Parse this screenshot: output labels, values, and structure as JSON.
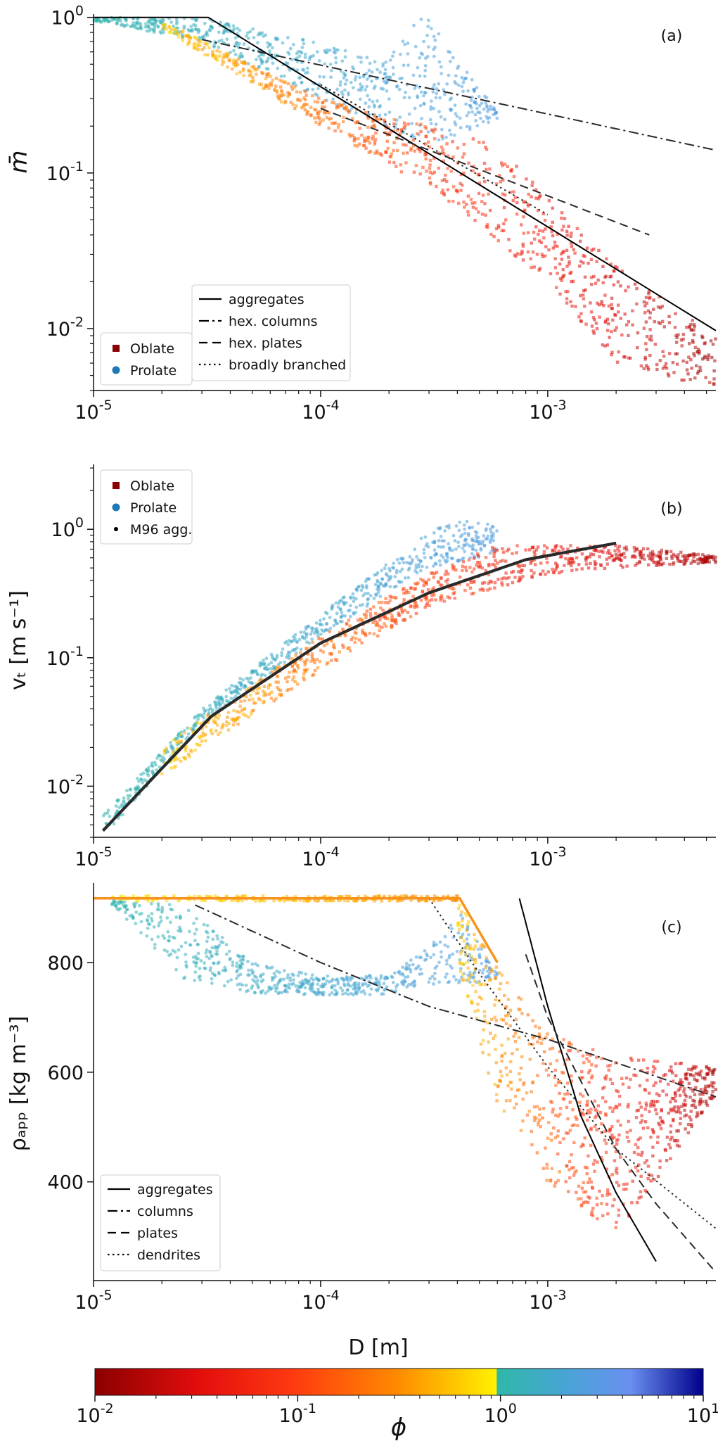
{
  "colors": {
    "oblate_marker": "#8b0000",
    "prolate_marker": "#1f77b4",
    "line": "#000000",
    "ref_line": "#333333",
    "axis": "#111111"
  },
  "colorbar": {
    "label": "ϕ",
    "ticks": [
      {
        "base": "10",
        "exp": "-2",
        "value": 0.01
      },
      {
        "base": "10",
        "exp": "-1",
        "value": 0.1
      },
      {
        "base": "10",
        "exp": "0",
        "value": 1
      },
      {
        "base": "10",
        "exp": "1",
        "value": 10
      }
    ],
    "range": [
      0.01,
      10
    ]
  },
  "chart_data": [
    {
      "type": "scatter",
      "panel_label": "(a)",
      "xlabel": "",
      "ylabel": "m̄",
      "xscale": "log",
      "yscale": "log",
      "xlim": [
        1e-05,
        0.0055
      ],
      "ylim": [
        0.004,
        1.05
      ],
      "x_ticks": [
        {
          "base": "10",
          "exp": "-5",
          "value": 1e-05
        },
        {
          "base": "10",
          "exp": "-4",
          "value": 0.0001
        },
        {
          "base": "10",
          "exp": "-3",
          "value": 0.001
        }
      ],
      "y_ticks": [
        {
          "base": "10",
          "exp": "0",
          "value": 1
        },
        {
          "base": "10",
          "exp": "-1",
          "value": 0.1
        },
        {
          "base": "10",
          "exp": "-2",
          "value": 0.01
        }
      ],
      "marker_legend": {
        "placement": "bottom-left",
        "entries": [
          {
            "label": "Oblate",
            "marker": "square",
            "color": "#8b0000"
          },
          {
            "label": "Prolate",
            "marker": "circle",
            "color": "#1f77b4"
          }
        ]
      },
      "line_legend": {
        "placement": "bottom-center",
        "entries": [
          {
            "label": "aggregates",
            "dash": "solid"
          },
          {
            "label": "hex. columns",
            "dash": "dashdot"
          },
          {
            "label": "hex. plates",
            "dash": "dashed"
          },
          {
            "label": "broadly branched",
            "dash": "dotted"
          }
        ]
      },
      "lines": [
        {
          "name": "aggregates",
          "dash": "solid",
          "x": [
            1e-05,
            3.2e-05,
            0.0055
          ],
          "y": [
            1.0,
            1.0,
            0.0097
          ]
        },
        {
          "name": "hex. columns",
          "dash": "dashdot",
          "x": [
            3e-05,
            0.0055
          ],
          "y": [
            0.72,
            0.14
          ]
        },
        {
          "name": "hex. plates",
          "dash": "dashed",
          "x": [
            0.0001,
            0.0028
          ],
          "y": [
            0.26,
            0.04
          ]
        },
        {
          "name": "broadly branched",
          "dash": "dotted",
          "x": [
            0.0001,
            0.001
          ],
          "y": [
            0.37,
            0.054
          ]
        }
      ],
      "clouds": [
        {
          "shape": "circle",
          "phi": [
            1,
            3
          ],
          "x_range": [
            1e-05,
            0.0006
          ],
          "upper": [
            [
              1e-05,
              1.0
            ],
            [
              3e-05,
              1.0
            ],
            [
              0.0002,
              0.55
            ],
            [
              0.00026,
              0.98
            ],
            [
              0.0003,
              0.98
            ],
            [
              0.0006,
              0.25
            ]
          ],
          "lower": [
            [
              1e-05,
              0.95
            ],
            [
              3e-05,
              0.7
            ],
            [
              0.0001,
              0.3
            ],
            [
              0.0003,
              0.15
            ],
            [
              0.0006,
              0.22
            ]
          ],
          "count": 650
        },
        {
          "shape": "square",
          "phi": [
            0.01,
            0.9
          ],
          "x_range": [
            2e-05,
            0.0055
          ],
          "upper": [
            [
              2e-05,
              0.95
            ],
            [
              0.0001,
              0.3
            ],
            [
              0.0003,
              0.2
            ],
            [
              0.0006,
              0.15
            ],
            [
              0.002,
              0.025
            ],
            [
              0.0055,
              0.009
            ]
          ],
          "lower": [
            [
              2e-05,
              0.85
            ],
            [
              0.0001,
              0.2
            ],
            [
              0.0003,
              0.08
            ],
            [
              0.001,
              0.02
            ],
            [
              0.002,
              0.006
            ],
            [
              0.0055,
              0.004
            ]
          ],
          "count": 850
        }
      ]
    },
    {
      "type": "scatter",
      "panel_label": "(b)",
      "xlabel": "",
      "ylabel": "vₜ [m s⁻¹]",
      "xscale": "log",
      "yscale": "log",
      "xlim": [
        1e-05,
        0.0055
      ],
      "ylim": [
        0.004,
        3.2
      ],
      "x_ticks": [
        {
          "base": "10",
          "exp": "-5",
          "value": 1e-05
        },
        {
          "base": "10",
          "exp": "-4",
          "value": 0.0001
        },
        {
          "base": "10",
          "exp": "-3",
          "value": 0.001
        }
      ],
      "y_ticks": [
        {
          "base": "10",
          "exp": "0",
          "value": 1
        },
        {
          "base": "10",
          "exp": "-1",
          "value": 0.1
        },
        {
          "base": "10",
          "exp": "-2",
          "value": 0.01
        }
      ],
      "marker_legend": {
        "placement": "top-left",
        "entries": [
          {
            "label": "Oblate",
            "marker": "square",
            "color": "#8b0000"
          },
          {
            "label": "Prolate",
            "marker": "circle",
            "color": "#1f77b4"
          },
          {
            "label": "M96 agg.",
            "marker": "dot",
            "color": "#000000"
          }
        ]
      },
      "lines": [
        {
          "name": "M96 agg.",
          "dash": "solid",
          "thick": true,
          "x": [
            1.1e-05,
            3.3e-05,
            0.0001,
            0.0003,
            0.0008,
            0.002
          ],
          "y": [
            0.0045,
            0.035,
            0.13,
            0.32,
            0.58,
            0.78
          ]
        }
      ],
      "clouds": [
        {
          "shape": "circle",
          "phi": [
            1,
            3
          ],
          "x_range": [
            1.1e-05,
            0.0006
          ],
          "upper": [
            [
              1.1e-05,
              0.006
            ],
            [
              3e-05,
              0.04
            ],
            [
              0.0001,
              0.22
            ],
            [
              0.0003,
              0.95
            ],
            [
              0.0004,
              1.2
            ],
            [
              0.0006,
              1.1
            ]
          ],
          "lower": [
            [
              1.1e-05,
              0.004
            ],
            [
              3e-05,
              0.03
            ],
            [
              0.0001,
              0.15
            ],
            [
              0.0003,
              0.5
            ],
            [
              0.0006,
              0.65
            ]
          ],
          "count": 650
        },
        {
          "shape": "square",
          "phi": [
            0.01,
            0.9
          ],
          "x_range": [
            2e-05,
            0.0055
          ],
          "upper": [
            [
              2e-05,
              0.02
            ],
            [
              0.0001,
              0.15
            ],
            [
              0.0003,
              0.45
            ],
            [
              0.0006,
              0.75
            ],
            [
              0.002,
              0.75
            ],
            [
              0.0055,
              0.62
            ]
          ],
          "lower": [
            [
              2e-05,
              0.012
            ],
            [
              0.0001,
              0.08
            ],
            [
              0.0003,
              0.25
            ],
            [
              0.001,
              0.45
            ],
            [
              0.002,
              0.5
            ],
            [
              0.0055,
              0.55
            ]
          ],
          "count": 850
        }
      ]
    },
    {
      "type": "scatter",
      "panel_label": "(c)",
      "xlabel": "D [m]",
      "ylabel": "ρₐₚₚ [kg m⁻³]",
      "xscale": "log",
      "yscale": "linear",
      "xlim": [
        1e-05,
        0.0055
      ],
      "ylim": [
        220,
        945
      ],
      "x_ticks": [
        {
          "base": "10",
          "exp": "-5",
          "value": 1e-05
        },
        {
          "base": "10",
          "exp": "-4",
          "value": 0.0001
        },
        {
          "base": "10",
          "exp": "-3",
          "value": 0.001
        }
      ],
      "y_ticks": [
        {
          "base": "400",
          "exp": "",
          "value": 400
        },
        {
          "base": "600",
          "exp": "",
          "value": 600
        },
        {
          "base": "800",
          "exp": "",
          "value": 800
        }
      ],
      "line_legend": {
        "placement": "bottom-left",
        "entries": [
          {
            "label": "aggregates",
            "dash": "solid"
          },
          {
            "label": "columns",
            "dash": "dashdot"
          },
          {
            "label": "plates",
            "dash": "dashed"
          },
          {
            "label": "dendrites",
            "dash": "dotted"
          }
        ]
      },
      "lines": [
        {
          "name": "aggregates",
          "dash": "solid",
          "x": [
            0.00075,
            0.001,
            0.0014,
            0.002,
            0.003
          ],
          "y": [
            917,
            720,
            520,
            380,
            255
          ]
        },
        {
          "name": "columns",
          "dash": "dashdot",
          "x": [
            2.8e-05,
            0.0001,
            0.0003,
            0.001,
            0.0055
          ],
          "y": [
            905,
            800,
            720,
            660,
            555
          ]
        },
        {
          "name": "plates",
          "dash": "dashed",
          "x": [
            0.0008,
            0.001,
            0.002,
            0.003,
            0.0055
          ],
          "y": [
            815,
            700,
            460,
            360,
            235
          ]
        },
        {
          "name": "dendrites",
          "dash": "dotted",
          "x": [
            0.0003,
            0.0005,
            0.001,
            0.002,
            0.0055
          ],
          "y": [
            917,
            780,
            610,
            460,
            315
          ]
        },
        {
          "name": "phi=1 cap",
          "dash": "solid",
          "color": "#f7931e",
          "width": 3.5,
          "x": [
            1e-05,
            0.00041,
            0.0006
          ],
          "y": [
            917,
            917,
            800
          ]
        }
      ],
      "clouds": [
        {
          "shape": "circle",
          "phi": [
            1,
            3
          ],
          "x_range": [
            1.2e-05,
            0.0006
          ],
          "upper": [
            [
              1.2e-05,
              915
            ],
            [
              2.5e-05,
              905
            ],
            [
              5e-05,
              800
            ],
            [
              0.0001,
              775
            ],
            [
              0.0002,
              778
            ],
            [
              0.0003,
              830
            ],
            [
              0.0004,
              900
            ],
            [
              0.0006,
              780
            ]
          ],
          "lower": [
            [
              1.2e-05,
              905
            ],
            [
              2.5e-05,
              770
            ],
            [
              5e-05,
              745
            ],
            [
              0.0001,
              740
            ],
            [
              0.0002,
              742
            ],
            [
              0.0003,
              760
            ],
            [
              0.0006,
              765
            ]
          ],
          "count": 650
        },
        {
          "shape": "square",
          "phi": [
            0.01,
            0.9
          ],
          "x_range": [
            0.0004,
            0.0055
          ],
          "upper": [
            [
              0.0004,
              915
            ],
            [
              0.0006,
              790
            ],
            [
              0.001,
              670
            ],
            [
              0.002,
              630
            ],
            [
              0.0055,
              610
            ]
          ],
          "lower": [
            [
              0.0004,
              800
            ],
            [
              0.0006,
              540
            ],
            [
              0.001,
              400
            ],
            [
              0.002,
              300
            ],
            [
              0.0055,
              560
            ]
          ],
          "count": 750
        },
        {
          "shape": "square",
          "phi": [
            0.3,
            0.95
          ],
          "x_range": [
            1.2e-05,
            0.0004
          ],
          "upper": [
            [
              1.2e-05,
              922
            ],
            [
              0.0004,
              922
            ]
          ],
          "lower": [
            [
              1.2e-05,
              912
            ],
            [
              0.0004,
              912
            ]
          ],
          "count": 260
        }
      ]
    }
  ]
}
